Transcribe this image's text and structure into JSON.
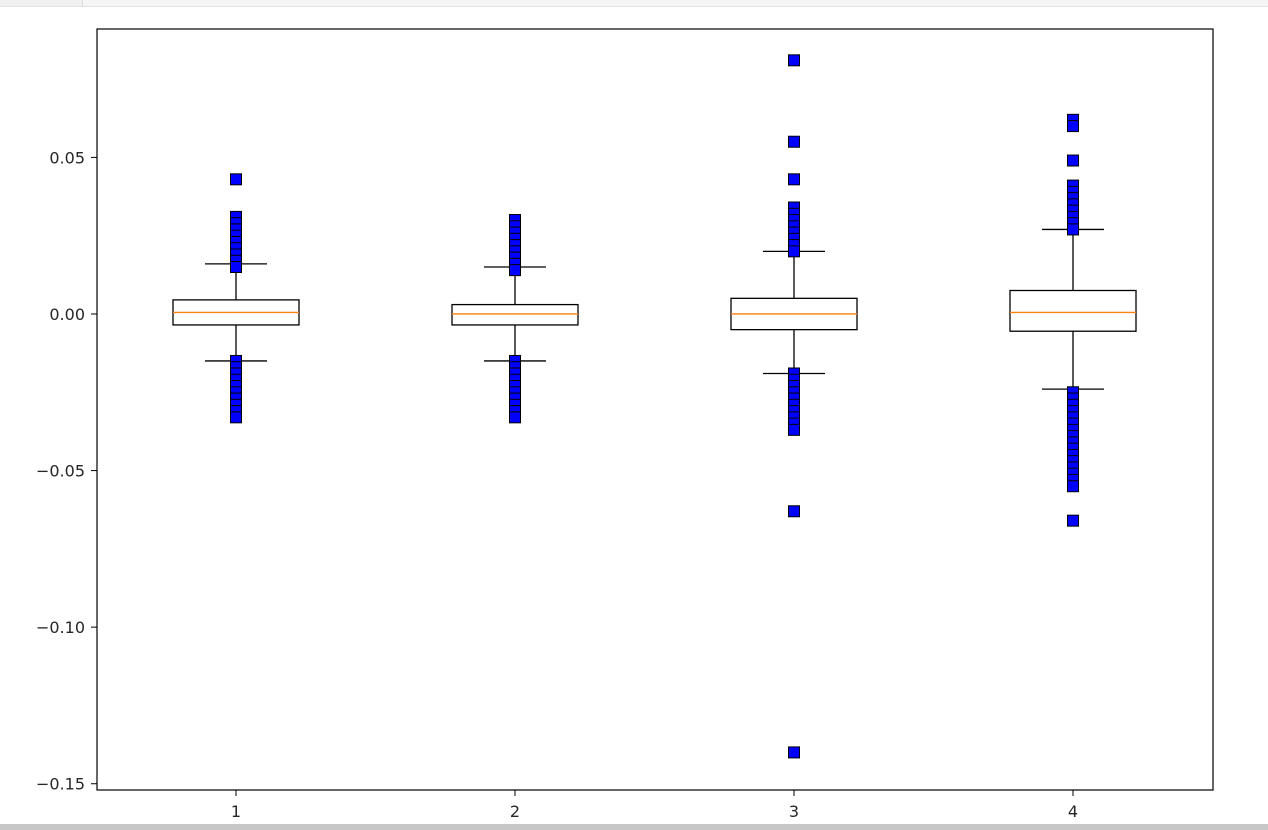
{
  "chart_data": {
    "type": "box",
    "title": "",
    "xlabel": "",
    "ylabel": "",
    "categories": [
      "1",
      "2",
      "3",
      "4"
    ],
    "ylim": [
      -0.152,
      0.091
    ],
    "y_ticks": [
      0.05,
      0.0,
      -0.05,
      -0.1,
      -0.15
    ],
    "y_tick_labels": [
      "0.05",
      "0.00",
      "−0.05",
      "−0.10",
      "−0.15"
    ],
    "grid": false,
    "legend": "none",
    "flier_marker": "square",
    "colors": {
      "box_edge": "#000000",
      "median": "#ff7f0e",
      "flier_fill": "#0000ff",
      "flier_edge": "#000000",
      "axes": "#000000"
    },
    "boxes": [
      {
        "label": "1",
        "whisker_low": -0.015,
        "q1": -0.0035,
        "median": 0.0005,
        "q3": 0.0045,
        "whisker_high": 0.016,
        "fliers": [
          0.043,
          0.031,
          0.029,
          0.027,
          0.025,
          0.023,
          0.021,
          0.019,
          0.017,
          0.015,
          -0.015,
          -0.017,
          -0.019,
          -0.021,
          -0.023,
          -0.025,
          -0.027,
          -0.029,
          -0.031,
          -0.033
        ]
      },
      {
        "label": "2",
        "whisker_low": -0.015,
        "q1": -0.0035,
        "median": 0.0,
        "q3": 0.003,
        "whisker_high": 0.015,
        "fliers": [
          0.03,
          0.028,
          0.026,
          0.024,
          0.022,
          0.02,
          0.018,
          0.016,
          0.014,
          -0.015,
          -0.017,
          -0.019,
          -0.021,
          -0.023,
          -0.025,
          -0.027,
          -0.029,
          -0.031,
          -0.033
        ]
      },
      {
        "label": "3",
        "whisker_low": -0.019,
        "q1": -0.005,
        "median": 0.0,
        "q3": 0.005,
        "whisker_high": 0.02,
        "fliers": [
          0.081,
          0.055,
          0.043,
          0.034,
          0.032,
          0.03,
          0.028,
          0.026,
          0.024,
          0.022,
          0.02,
          -0.019,
          -0.021,
          -0.023,
          -0.025,
          -0.027,
          -0.029,
          -0.031,
          -0.033,
          -0.035,
          -0.037,
          -0.063,
          -0.14
        ]
      },
      {
        "label": "4",
        "whisker_low": -0.024,
        "q1": -0.0055,
        "median": 0.0005,
        "q3": 0.0075,
        "whisker_high": 0.027,
        "fliers": [
          0.062,
          0.06,
          0.049,
          0.041,
          0.039,
          0.037,
          0.035,
          0.033,
          0.031,
          0.029,
          0.027,
          -0.025,
          -0.027,
          -0.029,
          -0.031,
          -0.033,
          -0.035,
          -0.037,
          -0.039,
          -0.041,
          -0.043,
          -0.045,
          -0.047,
          -0.049,
          -0.051,
          -0.053,
          -0.055,
          -0.066
        ]
      }
    ]
  }
}
